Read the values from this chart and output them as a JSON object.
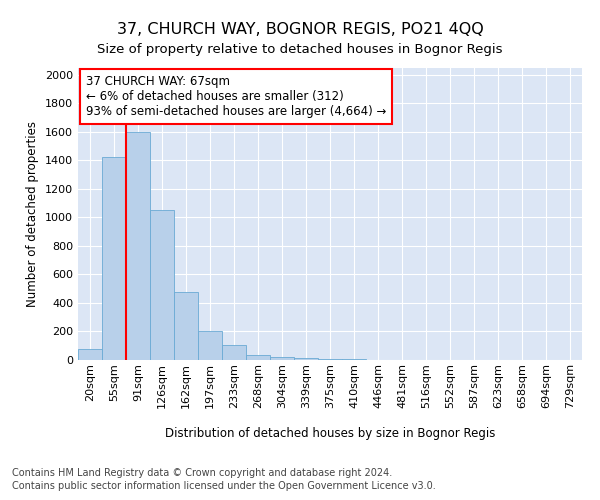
{
  "title1": "37, CHURCH WAY, BOGNOR REGIS, PO21 4QQ",
  "title2": "Size of property relative to detached houses in Bognor Regis",
  "xlabel": "Distribution of detached houses by size in Bognor Regis",
  "ylabel": "Number of detached properties",
  "footer1": "Contains HM Land Registry data © Crown copyright and database right 2024.",
  "footer2": "Contains public sector information licensed under the Open Government Licence v3.0.",
  "annotation_line1": "37 CHURCH WAY: 67sqm",
  "annotation_line2": "← 6% of detached houses are smaller (312)",
  "annotation_line3": "93% of semi-detached houses are larger (4,664) →",
  "bar_labels": [
    "20sqm",
    "55sqm",
    "91sqm",
    "126sqm",
    "162sqm",
    "197sqm",
    "233sqm",
    "268sqm",
    "304sqm",
    "339sqm",
    "375sqm",
    "410sqm",
    "446sqm",
    "481sqm",
    "516sqm",
    "552sqm",
    "587sqm",
    "623sqm",
    "658sqm",
    "694sqm",
    "729sqm"
  ],
  "bar_values": [
    80,
    1425,
    1600,
    1050,
    480,
    200,
    105,
    35,
    20,
    15,
    8,
    4,
    2,
    1,
    1,
    0,
    0,
    0,
    0,
    0,
    0
  ],
  "bar_color": "#b8d0ea",
  "bar_edge_color": "#6aaad4",
  "red_line_x": 1.5,
  "ylim": [
    0,
    2050
  ],
  "yticks": [
    0,
    200,
    400,
    600,
    800,
    1000,
    1200,
    1400,
    1600,
    1800,
    2000
  ],
  "plot_bg_color": "#dce6f5",
  "title1_fontsize": 11.5,
  "title2_fontsize": 9.5,
  "axis_label_fontsize": 8.5,
  "tick_fontsize": 8,
  "footer_fontsize": 7,
  "annotation_fontsize": 8.5
}
